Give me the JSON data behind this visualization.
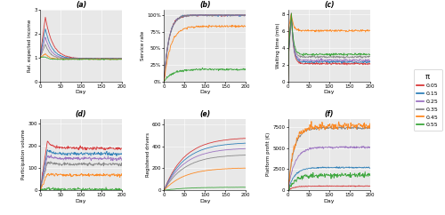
{
  "pi_values": [
    0.05,
    0.15,
    0.25,
    0.35,
    0.45,
    0.55
  ],
  "colors": [
    "#d62728",
    "#1f77b4",
    "#9467bd",
    "#7f7f7f",
    "#ff7f0e",
    "#2ca02c"
  ],
  "days": 201,
  "background_color": "#e8e8e8",
  "panels": [
    "(a)",
    "(b)",
    "(c)",
    "(d)",
    "(e)",
    "(f)"
  ],
  "ylabels": [
    "Rel. expected income",
    "Service rate",
    "Waiting time (min)",
    "Participation volume",
    "Registered drivers",
    "Platform profit (€)"
  ],
  "xlabel": "Day",
  "legend_title": "π",
  "panel_a": {
    "peak_day": 13,
    "peak_vals": [
      2.7,
      2.2,
      1.85,
      1.55,
      1.15,
      1.02
    ],
    "steady_vals": [
      0.95,
      0.95,
      0.95,
      0.95,
      0.93,
      0.92
    ],
    "taus": [
      18,
      16,
      14,
      12,
      10,
      8
    ],
    "noise": 0.008,
    "ylim": [
      0.0,
      3.0
    ],
    "yticks": [
      0.0,
      1.0,
      2.0,
      3.0
    ]
  },
  "panel_b": {
    "steady_vals": [
      1.0,
      1.0,
      1.0,
      1.0,
      0.83,
      0.18
    ],
    "taus": [
      12,
      12,
      12,
      12,
      16,
      20
    ],
    "noise": 0.008,
    "yticks_pct": [
      0,
      25,
      50,
      75,
      100
    ],
    "ylim": [
      0.0,
      1.08
    ]
  },
  "panel_c": {
    "spike_vals": [
      8.0,
      8.0,
      8.0,
      8.0,
      8.0,
      8.0
    ],
    "spike_day": 8,
    "steady_vals": [
      2.1,
      2.3,
      2.5,
      2.9,
      6.0,
      3.2
    ],
    "taus": [
      5,
      5,
      5,
      5,
      5,
      5
    ],
    "noise": 0.06,
    "ylim": [
      0.0,
      8.5
    ],
    "yticks": [
      0.0,
      2.0,
      4.0,
      6.0,
      8.0
    ]
  },
  "panel_d": {
    "peak_day": 18,
    "peak_vals": [
      220,
      180,
      153,
      125,
      73,
      8
    ],
    "steady_vals": [
      188,
      163,
      142,
      117,
      68,
      4
    ],
    "taus": [
      12,
      12,
      12,
      12,
      12,
      10
    ],
    "noise": 3.5,
    "ylim": [
      0,
      320
    ],
    "yticks": [
      0,
      100,
      200,
      300
    ]
  },
  "panel_e": {
    "final_vals": [
      480,
      435,
      385,
      325,
      205,
      28
    ],
    "taus": [
      50,
      50,
      50,
      50,
      50,
      50
    ],
    "noise": 0.5,
    "ylim": [
      0,
      650
    ],
    "yticks": [
      0,
      200,
      400,
      600
    ]
  },
  "panel_f": {
    "steady_vals": [
      500,
      2700,
      5100,
      7400,
      7600,
      1800
    ],
    "taus": [
      15,
      16,
      16,
      14,
      14,
      18
    ],
    "noise_scales": [
      25,
      40,
      60,
      70,
      200,
      130
    ],
    "ylim": [
      0,
      8500
    ],
    "yticks": [
      0,
      2500,
      5000,
      7500
    ]
  }
}
